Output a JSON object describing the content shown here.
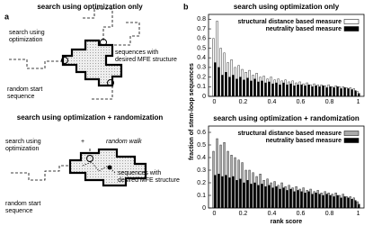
{
  "panel_a": {
    "label": "a",
    "top": {
      "title": "search using optimization only",
      "optimization_label": [
        "search using",
        "optimization"
      ],
      "target_label": [
        "sequences with",
        "desired MFE structure"
      ],
      "start_label": [
        "random start",
        "sequence"
      ]
    },
    "bottom": {
      "title": "search using optimization + randomization",
      "optimization_label": [
        "search using",
        "optimization"
      ],
      "plus": "+",
      "walk_label": "random walk",
      "target_label": [
        "sequences with",
        "desired MFE structure"
      ],
      "start_label": [
        "random start",
        "sequence"
      ]
    }
  },
  "panel_b": {
    "label": "b",
    "ylabel": "fraction of stem-loop sequences"
  },
  "chart_data": [
    {
      "type": "bar",
      "title": "search using optimization only",
      "x": [
        0,
        0.025,
        0.05,
        0.075,
        0.1,
        0.125,
        0.15,
        0.175,
        0.2,
        0.225,
        0.25,
        0.275,
        0.3,
        0.325,
        0.35,
        0.375,
        0.4,
        0.425,
        0.45,
        0.475,
        0.5,
        0.525,
        0.55,
        0.575,
        0.6,
        0.625,
        0.65,
        0.675,
        0.7,
        0.725,
        0.75,
        0.775,
        0.8,
        0.825,
        0.85,
        0.875,
        0.9,
        0.925,
        0.95,
        0.975,
        1
      ],
      "series": [
        {
          "name": "structural distance based measure",
          "color": "#ffffff",
          "values": [
            0.6,
            0.78,
            0.5,
            0.45,
            0.35,
            0.38,
            0.3,
            0.32,
            0.28,
            0.25,
            0.27,
            0.22,
            0.24,
            0.2,
            0.21,
            0.18,
            0.2,
            0.17,
            0.18,
            0.16,
            0.17,
            0.15,
            0.16,
            0.14,
            0.15,
            0.13,
            0.14,
            0.12,
            0.13,
            0.12,
            0.12,
            0.11,
            0.12,
            0.1,
            0.11,
            0.1,
            0.1,
            0.09,
            0.09,
            0.08,
            0.05
          ]
        },
        {
          "name": "neutrality based measure",
          "color": "#000000",
          "values": [
            0.35,
            0.3,
            0.22,
            0.25,
            0.2,
            0.22,
            0.18,
            0.2,
            0.17,
            0.19,
            0.16,
            0.18,
            0.15,
            0.16,
            0.14,
            0.15,
            0.13,
            0.14,
            0.12,
            0.14,
            0.12,
            0.13,
            0.11,
            0.12,
            0.12,
            0.11,
            0.12,
            0.1,
            0.11,
            0.1,
            0.11,
            0.09,
            0.1,
            0.09,
            0.1,
            0.08,
            0.09,
            0.08,
            0.07,
            0.06,
            0.03
          ]
        }
      ],
      "xlim": [
        -0.04,
        1.04
      ],
      "xticks": [
        0,
        0.2,
        0.4,
        0.6,
        0.8,
        1
      ],
      "ylim": [
        0,
        0.85
      ],
      "yticks": [
        0,
        0.1,
        0.2,
        0.3,
        0.4,
        0.5,
        0.6,
        0.7,
        0.8
      ],
      "legend": "upper right"
    },
    {
      "type": "bar",
      "title": "search using optimization + randomization",
      "xlabel": "rank score",
      "x": [
        0,
        0.025,
        0.05,
        0.075,
        0.1,
        0.125,
        0.15,
        0.175,
        0.2,
        0.225,
        0.25,
        0.275,
        0.3,
        0.325,
        0.35,
        0.375,
        0.4,
        0.425,
        0.45,
        0.475,
        0.5,
        0.525,
        0.55,
        0.575,
        0.6,
        0.625,
        0.65,
        0.675,
        0.7,
        0.725,
        0.75,
        0.775,
        0.8,
        0.825,
        0.85,
        0.875,
        0.9,
        0.925,
        0.95,
        0.975,
        1
      ],
      "series": [
        {
          "name": "structural distance based measure",
          "color": "#aaaaaa",
          "values": [
            0.45,
            0.55,
            0.5,
            0.52,
            0.45,
            0.42,
            0.4,
            0.38,
            0.36,
            0.3,
            0.3,
            0.28,
            0.25,
            0.27,
            0.22,
            0.23,
            0.2,
            0.21,
            0.18,
            0.2,
            0.17,
            0.18,
            0.16,
            0.17,
            0.15,
            0.16,
            0.14,
            0.15,
            0.13,
            0.14,
            0.12,
            0.13,
            0.12,
            0.11,
            0.12,
            0.1,
            0.11,
            0.09,
            0.09,
            0.08,
            0.05
          ]
        },
        {
          "name": "neutrality based measure",
          "color": "#000000",
          "values": [
            0.26,
            0.27,
            0.25,
            0.26,
            0.24,
            0.25,
            0.22,
            0.23,
            0.2,
            0.22,
            0.19,
            0.2,
            0.18,
            0.19,
            0.17,
            0.18,
            0.16,
            0.17,
            0.15,
            0.16,
            0.14,
            0.15,
            0.13,
            0.14,
            0.13,
            0.12,
            0.13,
            0.11,
            0.12,
            0.11,
            0.1,
            0.11,
            0.1,
            0.09,
            0.1,
            0.08,
            0.09,
            0.08,
            0.07,
            0.06,
            0.03
          ]
        }
      ],
      "xlim": [
        -0.04,
        1.04
      ],
      "xticks": [
        0,
        0.2,
        0.4,
        0.6,
        0.8,
        1
      ],
      "ylim": [
        0,
        0.65
      ],
      "yticks": [
        0,
        0.1,
        0.2,
        0.3,
        0.4,
        0.5,
        0.6
      ],
      "legend": "upper right"
    }
  ]
}
